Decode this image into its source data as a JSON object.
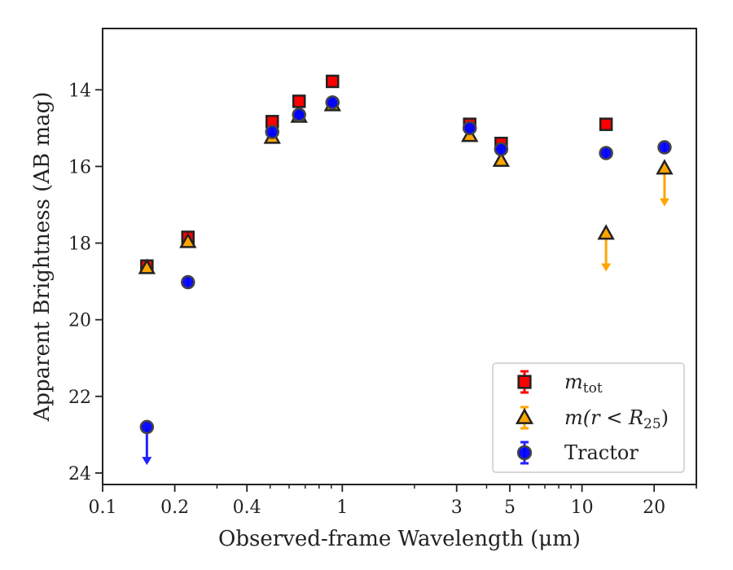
{
  "chart_data": {
    "type": "scatter",
    "xlabel": "Observed-frame Wavelength (μm)",
    "ylabel": "Apparent Brightness (AB mag)",
    "x_scale": "log",
    "xlim": [
      0.1,
      30
    ],
    "ylim": [
      24.3,
      12.4
    ],
    "y_inverted": true,
    "x_ticks": [
      {
        "value": 0.1,
        "label": "0.1"
      },
      {
        "value": 0.2,
        "label": "0.2"
      },
      {
        "value": 0.4,
        "label": "0.4"
      },
      {
        "value": 1,
        "label": "1"
      },
      {
        "value": 3,
        "label": "3"
      },
      {
        "value": 5,
        "label": "5"
      },
      {
        "value": 10,
        "label": "10"
      },
      {
        "value": 20,
        "label": "20"
      }
    ],
    "y_ticks": [
      {
        "value": 14,
        "label": "14"
      },
      {
        "value": 16,
        "label": "16"
      },
      {
        "value": 18,
        "label": "18"
      },
      {
        "value": 20,
        "label": "20"
      },
      {
        "value": 22,
        "label": "22"
      },
      {
        "value": 24,
        "label": "24"
      }
    ],
    "grid": false,
    "legend_position": "lower-right",
    "series": [
      {
        "name": "m_tot",
        "legend_base": "m",
        "legend_sub": "tot",
        "marker": "square",
        "color": "#ff0000",
        "edge": "#222222",
        "errcolor": "#ff0000",
        "points": [
          {
            "x": 0.153,
            "y": 18.6
          },
          {
            "x": 0.227,
            "y": 17.85
          },
          {
            "x": 0.51,
            "y": 14.83
          },
          {
            "x": 0.66,
            "y": 14.3
          },
          {
            "x": 0.91,
            "y": 13.78
          },
          {
            "x": 3.4,
            "y": 14.9
          },
          {
            "x": 4.6,
            "y": 15.4
          },
          {
            "x": 12.6,
            "y": 14.9
          }
        ]
      },
      {
        "name": "m(r < R_25)",
        "legend_pre": "m(r < R",
        "legend_sub": "25",
        "legend_post": ")",
        "marker": "triangle",
        "color": "#ffa500",
        "edge": "#222222",
        "errcolor": "#ffa500",
        "points": [
          {
            "x": 0.153,
            "y": 18.65
          },
          {
            "x": 0.227,
            "y": 17.97
          },
          {
            "x": 0.51,
            "y": 15.25
          },
          {
            "x": 0.66,
            "y": 14.7
          },
          {
            "x": 0.91,
            "y": 14.4
          },
          {
            "x": 3.4,
            "y": 15.2
          },
          {
            "x": 4.6,
            "y": 15.85
          },
          {
            "x": 12.6,
            "y": 17.75,
            "upper_limit": true,
            "arrow_to": 18.7
          },
          {
            "x": 22.1,
            "y": 16.05,
            "upper_limit": true,
            "arrow_to": 17.0
          }
        ]
      },
      {
        "name": "Tractor",
        "marker": "circle",
        "color": "#0000ff",
        "edge": "#444444",
        "errcolor": "#2222ff",
        "points": [
          {
            "x": 0.153,
            "y": 22.8,
            "upper_limit": true,
            "arrow_to": 23.75
          },
          {
            "x": 0.227,
            "y": 19.02
          },
          {
            "x": 0.51,
            "y": 15.1
          },
          {
            "x": 0.66,
            "y": 14.65
          },
          {
            "x": 0.91,
            "y": 14.33
          },
          {
            "x": 3.4,
            "y": 15.0
          },
          {
            "x": 4.6,
            "y": 15.55
          },
          {
            "x": 12.6,
            "y": 15.65
          },
          {
            "x": 22.1,
            "y": 15.5
          }
        ]
      }
    ]
  }
}
